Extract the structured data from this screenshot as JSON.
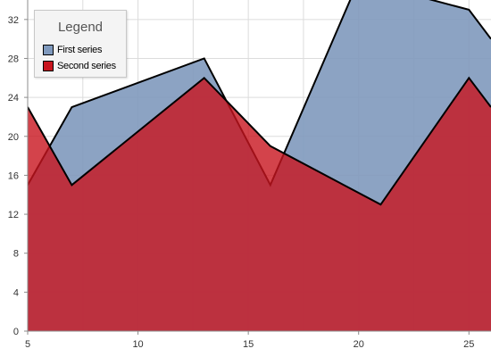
{
  "chart_data": {
    "type": "area",
    "title": "",
    "xlabel": "",
    "ylabel": "",
    "xlim": [
      5,
      26
    ],
    "ylim": [
      0,
      34
    ],
    "x_ticks": [
      5,
      10,
      15,
      20,
      25
    ],
    "y_ticks": [
      0,
      4,
      8,
      12,
      16,
      20,
      24,
      28,
      32
    ],
    "grid": true,
    "legend": {
      "title": "Legend",
      "placement": "top-left"
    },
    "series": [
      {
        "name": "First series",
        "color": "#7f99bd",
        "x": [
          5,
          7,
          13,
          16,
          20,
          25,
          26
        ],
        "y": [
          15,
          23,
          28,
          15,
          36,
          33,
          30
        ]
      },
      {
        "name": "Second series",
        "color": "#c8141e",
        "x": [
          5,
          7,
          13,
          16,
          21,
          25,
          26
        ],
        "y": [
          23,
          15,
          26,
          19,
          13,
          26,
          23
        ]
      }
    ]
  }
}
